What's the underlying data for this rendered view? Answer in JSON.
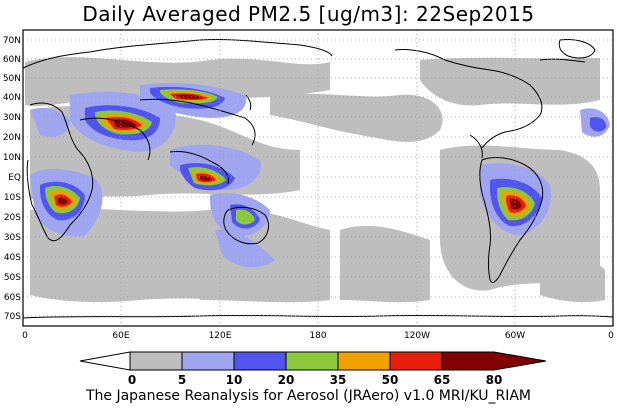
{
  "title": "Daily Averaged PM2.5 [ug/m3]: 22Sep2015",
  "footer": "The Japanese Reanalysis for Aerosol (JRAero) v1.0 MRI/KU_RIAM",
  "map": {
    "lat_labels": [
      "70N",
      "60N",
      "50N",
      "40N",
      "30N",
      "20N",
      "10N",
      "EQ",
      "10S",
      "20S",
      "30S",
      "40S",
      "50S",
      "60S",
      "70S"
    ],
    "lon_labels": [
      "0",
      "60E",
      "120E",
      "180",
      "120W",
      "60W",
      "0"
    ]
  },
  "legend": {
    "ticks": [
      "0",
      "5",
      "10",
      "20",
      "35",
      "50",
      "65",
      "80"
    ],
    "colors": [
      "#ffffff",
      "#bebebe",
      "#a0a5f0",
      "#5055f0",
      "#8cc83c",
      "#f0a000",
      "#e61e0a",
      "#820000"
    ]
  }
}
